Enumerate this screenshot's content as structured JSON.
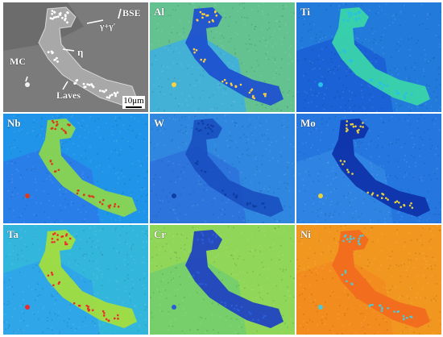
{
  "panels": [
    {
      "id": "bse",
      "kind": "bse",
      "labels": {
        "bse": "BSE",
        "gamma": "γ+γ′",
        "eta": "η",
        "mc": "MC",
        "laves": "Laves"
      },
      "scale_bar": "10μm"
    },
    {
      "id": "al",
      "label": "Al",
      "bg": "#43b1d6",
      "matrix_tone": "#7fd05a",
      "phase": "#1c4fd0",
      "dots": "#ffd23a"
    },
    {
      "id": "ti",
      "label": "Ti",
      "bg": "#1a62d6",
      "matrix_tone": "#2a8ee0",
      "phase": "#3bd6a8",
      "dots": "#27c0e8"
    },
    {
      "id": "nb",
      "label": "Nb",
      "bg": "#2a7ee8",
      "matrix_tone": "#17a6e8",
      "phase": "#8dd84b",
      "dots": "#d83a1a"
    },
    {
      "id": "w",
      "label": "W",
      "bg": "#2d75dd",
      "matrix_tone": "#3196e0",
      "phase": "#1a4fc0",
      "dots": "#0f3fa6"
    },
    {
      "id": "mo",
      "label": "Mo",
      "bg": "#2f84e3",
      "matrix_tone": "#1e6edc",
      "phase": "#0e31a9",
      "dots": "#e6d23d"
    },
    {
      "id": "ta",
      "label": "Ta",
      "bg": "#2ea6e8",
      "matrix_tone": "#39c2d2",
      "phase": "#a6e03a",
      "dots": "#ee2a2a"
    },
    {
      "id": "cr",
      "label": "Cr",
      "bg": "#76cf6a",
      "matrix_tone": "#a4dd4a",
      "phase": "#1d3fc2",
      "dots": "#2a5cd8"
    },
    {
      "id": "ni",
      "label": "Ni",
      "bg": "#f28c1e",
      "matrix_tone": "#f0a020",
      "phase": "#f26a1e",
      "dots": "#4ec9d8"
    }
  ]
}
